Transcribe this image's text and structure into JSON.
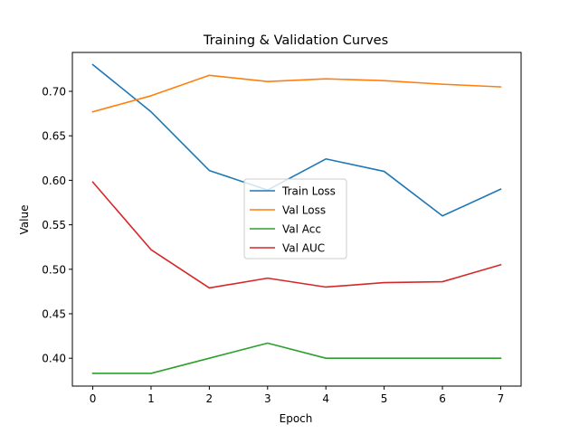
{
  "chart_data": {
    "type": "line",
    "title": "Training & Validation Curves",
    "xlabel": "Epoch",
    "ylabel": "Value",
    "x": [
      0,
      1,
      2,
      3,
      4,
      5,
      6,
      7
    ],
    "xlim": [
      -0.35,
      7.35
    ],
    "ylim": [
      0.3687,
      0.7437
    ],
    "xticks": [
      0,
      1,
      2,
      3,
      4,
      5,
      6,
      7
    ],
    "xtick_labels": [
      "0",
      "1",
      "2",
      "3",
      "4",
      "5",
      "6",
      "7"
    ],
    "yticks": [
      0.4,
      0.45,
      0.5,
      0.55,
      0.6,
      0.65,
      0.7
    ],
    "ytick_labels": [
      "0.40",
      "0.45",
      "0.50",
      "0.55",
      "0.60",
      "0.65",
      "0.70"
    ],
    "grid": false,
    "legend_position": "center",
    "series": [
      {
        "name": "Train Loss",
        "color": "#1f77b4",
        "values": [
          0.73,
          0.677,
          0.611,
          0.589,
          0.624,
          0.61,
          0.56,
          0.59
        ]
      },
      {
        "name": "Val Loss",
        "color": "#ff7f0e",
        "values": [
          0.677,
          0.695,
          0.718,
          0.711,
          0.714,
          0.712,
          0.708,
          0.705
        ]
      },
      {
        "name": "Val Acc",
        "color": "#2ca02c",
        "values": [
          0.383,
          0.383,
          0.4,
          0.417,
          0.4,
          0.4,
          0.4,
          0.4
        ]
      },
      {
        "name": "Val AUC",
        "color": "#d62728",
        "values": [
          0.598,
          0.522,
          0.479,
          0.49,
          0.48,
          0.485,
          0.486,
          0.505
        ]
      }
    ]
  }
}
